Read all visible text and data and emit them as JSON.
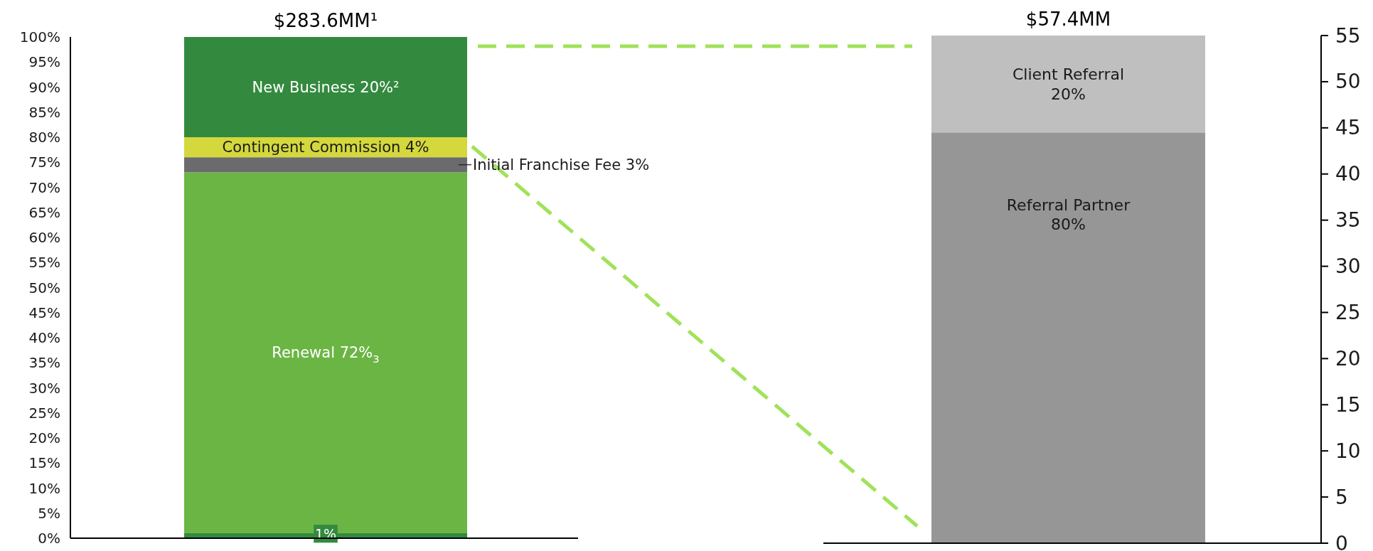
{
  "chart_data": [
    {
      "type": "bar",
      "title": "$283.6MM¹",
      "stacked": true,
      "categories": [
        null
      ],
      "ylim": [
        0,
        100
      ],
      "yticks": [
        {
          "value": 0,
          "label": "0%"
        },
        {
          "value": 5,
          "label": "5%"
        },
        {
          "value": 10,
          "label": "10%"
        },
        {
          "value": 15,
          "label": "15%"
        },
        {
          "value": 20,
          "label": "20%"
        },
        {
          "value": 25,
          "label": "25%"
        },
        {
          "value": 30,
          "label": "30%"
        },
        {
          "value": 35,
          "label": "35%"
        },
        {
          "value": 40,
          "label": "40%"
        },
        {
          "value": 45,
          "label": "45%"
        },
        {
          "value": 50,
          "label": "50%"
        },
        {
          "value": 55,
          "label": "55%"
        },
        {
          "value": 60,
          "label": "60%"
        },
        {
          "value": 65,
          "label": "65%"
        },
        {
          "value": 70,
          "label": "70%"
        },
        {
          "value": 75,
          "label": "75%"
        },
        {
          "value": 80,
          "label": "80%"
        },
        {
          "value": 85,
          "label": "85%"
        },
        {
          "value": 90,
          "label": "90%"
        },
        {
          "value": 95,
          "label": "95%"
        },
        {
          "value": 100,
          "label": "100%"
        }
      ],
      "series": [
        {
          "name": "1%",
          "color": "#338a3e",
          "values": [
            1
          ]
        },
        {
          "name": "Renewal 72%$_{3}$",
          "color": "#6bb545",
          "values": [
            72
          ]
        },
        {
          "name": "Initial Franchise Fee 3%",
          "color": "#6b6b6d",
          "values": [
            3
          ]
        },
        {
          "name": "Contingent Commission 4%",
          "color": "#d4d83c",
          "values": [
            4
          ]
        },
        {
          "name": "New Business 20%²",
          "color": "#338a3e",
          "values": [
            20
          ]
        }
      ]
    },
    {
      "type": "bar",
      "title": "$57.4MM",
      "stacked": true,
      "categories": [
        null
      ],
      "ylim": [
        0,
        55
      ],
      "yticks": [
        0,
        5,
        10,
        15,
        20,
        25,
        30,
        35,
        40,
        45,
        50,
        55
      ],
      "series": [
        {
          "name": "Referral Partner\n80%",
          "color": "#969696",
          "values": [
            44.5
          ]
        },
        {
          "name": "Client Referral\n20%",
          "color": "#bfbfbf",
          "values": [
            10.5
          ]
        }
      ]
    }
  ]
}
